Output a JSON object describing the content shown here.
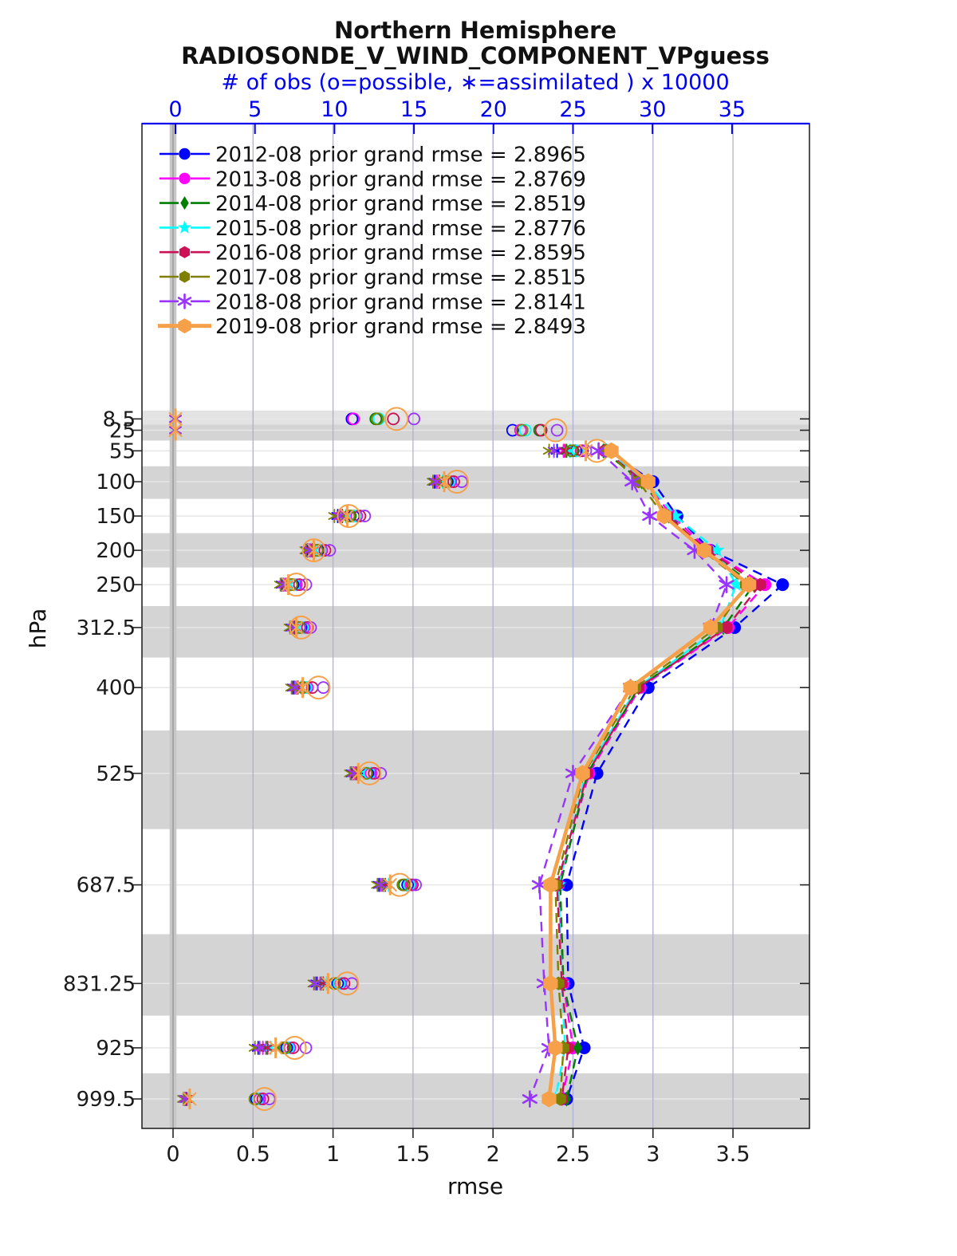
{
  "header": {
    "title1": "Northern Hemisphere",
    "title2": "RADIOSONDE_V_WIND_COMPONENT_VPguess"
  },
  "axes": {
    "top": {
      "label": "# of obs (o=possible, ∗=assimilated ) x 10000",
      "tick_labels": [
        "0",
        "5",
        "10",
        "15",
        "20",
        "25",
        "30",
        "35"
      ],
      "tick_values": [
        0,
        5,
        10,
        15,
        20,
        25,
        30,
        35
      ],
      "range": [
        -2.1,
        39.9
      ],
      "color": "#0000ee"
    },
    "bottom": {
      "label": "rmse",
      "tick_labels": [
        "0",
        "0.5",
        "1",
        "1.5",
        "2",
        "2.5",
        "3",
        "3.5"
      ],
      "tick_values": [
        0,
        0.5,
        1,
        1.5,
        2,
        2.5,
        3,
        3.5
      ],
      "range": [
        -0.195,
        3.98
      ]
    },
    "left": {
      "label": "hPa",
      "tick_labels": [
        "8.5",
        "25",
        "55",
        "100",
        "150",
        "200",
        "250",
        "312.5",
        "400",
        "525",
        "687.5",
        "831.25",
        "925",
        "999.5"
      ],
      "tick_values": [
        8.5,
        25,
        55,
        100,
        150,
        200,
        250,
        312.5,
        400,
        525,
        687.5,
        831.25,
        925,
        999.5
      ]
    }
  },
  "chart_data": {
    "type": "line",
    "title": "Northern Hemisphere RADIOSONDE_V_WIND_COMPONENT_VPguess",
    "xlabel_bottom": "rmse",
    "xlabel_top": "# of obs (o=possible, ∗=assimilated ) x 10000",
    "ylabel": "hPa",
    "grid": true,
    "legend_position": "top-left-inside",
    "levels_hpa": [
      8.5,
      25,
      55,
      100,
      150,
      200,
      250,
      312.5,
      400,
      525,
      687.5,
      831.25,
      925,
      999.5
    ],
    "series": [
      {
        "id": "2012-08",
        "legend_label": "2012-08 prior grand rmse = 2.8965",
        "grand_rmse": "2.8965",
        "color": "#0000ff",
        "marker": "circle",
        "line_style": "dashed",
        "rmse": [
          null,
          null,
          2.72,
          3.0,
          3.15,
          3.36,
          3.81,
          3.51,
          2.97,
          2.65,
          2.46,
          2.47,
          2.57,
          2.46
        ],
        "obs_possible": [
          11.1,
          21.2,
          25.2,
          17.1,
          11.2,
          9.0,
          7.4,
          7.9,
          8.1,
          12.1,
          14.6,
          10.2,
          7.0,
          5.1
        ],
        "obs_assimilated": [
          0,
          0,
          24.0,
          16.3,
          10.2,
          8.3,
          6.7,
          7.3,
          7.4,
          11.1,
          12.8,
          8.9,
          5.2,
          0.6
        ]
      },
      {
        "id": "2013-08",
        "legend_label": "2013-08 prior grand rmse = 2.8769",
        "grand_rmse": "2.8769",
        "color": "#ff00ff",
        "marker": "circle",
        "line_style": "dashed",
        "rmse": [
          null,
          null,
          2.7,
          2.95,
          3.12,
          3.35,
          3.7,
          3.47,
          2.92,
          2.6,
          2.41,
          2.44,
          2.5,
          2.43
        ],
        "obs_possible": [
          11.2,
          21.7,
          25.5,
          17.3,
          11.4,
          9.2,
          7.6,
          8.1,
          8.3,
          12.3,
          14.8,
          10.4,
          7.2,
          5.3
        ],
        "obs_assimilated": [
          0,
          0,
          24.4,
          16.5,
          10.4,
          8.5,
          6.9,
          7.5,
          7.6,
          11.3,
          13.0,
          9.1,
          5.5,
          0.7
        ]
      },
      {
        "id": "2014-08",
        "legend_label": "2014-08 prior grand rmse = 2.8519",
        "grand_rmse": "2.8519",
        "color": "#007f00",
        "marker": "diamond",
        "line_style": "dashed",
        "rmse": [
          null,
          null,
          2.69,
          2.93,
          3.1,
          3.33,
          3.63,
          3.44,
          2.91,
          2.59,
          2.42,
          2.44,
          2.53,
          2.46
        ],
        "obs_possible": [
          12.6,
          22.9,
          25.0,
          17.0,
          11.0,
          8.9,
          7.3,
          7.8,
          8.0,
          12.0,
          14.4,
          10.0,
          6.8,
          5.0
        ],
        "obs_assimilated": [
          0,
          0,
          24.6,
          16.6,
          10.5,
          8.6,
          7.0,
          7.5,
          7.7,
          11.4,
          13.1,
          9.2,
          5.7,
          0.7
        ]
      },
      {
        "id": "2015-08",
        "legend_label": "2015-08 prior grand rmse = 2.8776",
        "grand_rmse": "2.8776",
        "color": "#00ffff",
        "marker": "star",
        "line_style": "dashed",
        "rmse": [
          null,
          null,
          2.71,
          2.96,
          3.14,
          3.4,
          3.52,
          3.42,
          2.9,
          2.58,
          2.41,
          2.43,
          2.45,
          2.39
        ],
        "obs_possible": [
          12.8,
          22.0,
          25.3,
          17.2,
          11.3,
          9.1,
          7.5,
          8.0,
          8.2,
          12.2,
          14.7,
          10.3,
          7.1,
          5.2
        ],
        "obs_assimilated": [
          0,
          0,
          24.8,
          16.8,
          10.7,
          8.8,
          7.2,
          7.7,
          7.9,
          11.6,
          13.4,
          9.5,
          6.0,
          0.8
        ]
      },
      {
        "id": "2016-08",
        "legend_label": "2016-08 prior grand rmse = 2.8595",
        "grand_rmse": "2.8595",
        "color": "#cc1155",
        "marker": "hexagon",
        "line_style": "dashed",
        "rmse": [
          null,
          null,
          2.7,
          2.94,
          3.09,
          3.34,
          3.67,
          3.46,
          2.91,
          2.59,
          2.4,
          2.43,
          2.47,
          2.43
        ],
        "obs_possible": [
          13.7,
          23.0,
          25.6,
          17.5,
          11.6,
          9.4,
          7.8,
          8.3,
          8.6,
          12.5,
          14.9,
          10.6,
          7.4,
          5.5
        ],
        "obs_assimilated": [
          0,
          0,
          24.5,
          16.6,
          10.5,
          8.6,
          7.0,
          7.5,
          7.7,
          11.4,
          13.2,
          9.3,
          5.8,
          0.7
        ]
      },
      {
        "id": "2017-08",
        "legend_label": "2017-08 prior grand rmse = 2.8515",
        "grand_rmse": "2.8515",
        "color": "#808000",
        "marker": "hexagon",
        "line_style": "dashed",
        "rmse": [
          null,
          null,
          2.71,
          2.91,
          3.07,
          3.31,
          3.58,
          3.4,
          2.89,
          2.57,
          2.39,
          2.41,
          2.44,
          2.42
        ],
        "obs_possible": [
          12.7,
          21.8,
          24.9,
          17.0,
          10.9,
          8.9,
          7.3,
          7.8,
          8.0,
          12.0,
          14.3,
          10.0,
          6.9,
          5.0
        ],
        "obs_assimilated": [
          0,
          0,
          23.5,
          16.2,
          10.0,
          8.2,
          6.6,
          7.2,
          7.3,
          11.0,
          12.7,
          8.7,
          5.0,
          0.5
        ]
      },
      {
        "id": "2018-08",
        "legend_label": "2018-08 prior grand rmse = 2.8141",
        "grand_rmse": "2.8141",
        "color": "#9933ff",
        "marker": "asterisk",
        "line_style": "dashed",
        "rmse": [
          null,
          null,
          2.66,
          2.87,
          2.98,
          3.26,
          3.46,
          3.36,
          2.86,
          2.5,
          2.29,
          2.32,
          2.35,
          2.23
        ],
        "obs_possible": [
          15.0,
          24.0,
          25.8,
          18.0,
          11.9,
          9.7,
          8.2,
          8.5,
          9.3,
          12.9,
          15.1,
          11.1,
          8.2,
          5.9
        ],
        "obs_assimilated": [
          0,
          0,
          23.8,
          16.4,
          10.3,
          8.4,
          6.8,
          7.4,
          7.5,
          11.2,
          12.9,
          8.8,
          5.3,
          0.6
        ]
      },
      {
        "id": "2019-08",
        "legend_label": "2019-08 prior grand rmse = 2.8493",
        "grand_rmse": "2.8493",
        "color": "#f6a04a",
        "marker": "hexagon-big",
        "line_style": "solid",
        "rmse": [
          null,
          null,
          2.74,
          2.97,
          3.07,
          3.32,
          3.6,
          3.36,
          2.86,
          2.56,
          2.36,
          2.36,
          2.39,
          2.35
        ],
        "obs_possible": [
          13.9,
          23.9,
          26.5,
          17.7,
          10.9,
          8.7,
          7.6,
          7.9,
          9.0,
          12.2,
          14.1,
          10.8,
          7.5,
          5.6
        ],
        "obs_assimilated": [
          0,
          0,
          25.8,
          16.9,
          10.8,
          8.7,
          7.1,
          7.6,
          8.0,
          11.5,
          13.5,
          9.6,
          6.3,
          0.9
        ]
      }
    ]
  },
  "styles": {
    "band_color": "#d4d4d4",
    "band_light_color": "#e3e3e3",
    "h_grid_color": "#e6e6e6",
    "v_grid_color": "#b0b0d0",
    "zero_band_color": "#c7c7c7",
    "zero_line_color": "#9b9b9b",
    "border_color": "#262626",
    "top_axis_color": "#0000ee",
    "tick_label_color": "#1a1a1a"
  }
}
